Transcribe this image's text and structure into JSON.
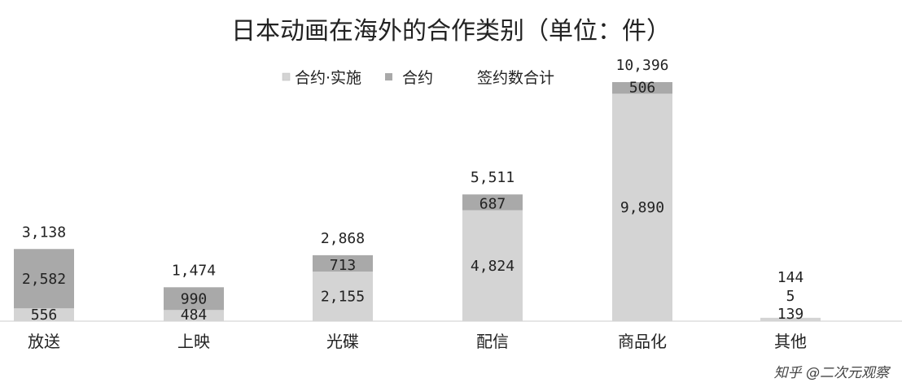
{
  "chart_data": {
    "type": "bar",
    "stacked": true,
    "title": "日本动画在海外的合作类别（单位：件）",
    "categories": [
      "放送",
      "上映",
      "光碟",
      "配信",
      "商品化",
      "其他"
    ],
    "series": [
      {
        "name": "合约·实施",
        "values": [
          556,
          484,
          2155,
          4824,
          9890,
          139
        ],
        "labels": [
          "556",
          "484",
          "2,155",
          "4,824",
          "9,890",
          "139"
        ],
        "color": "#d4d4d4"
      },
      {
        "name": "合约",
        "values": [
          2582,
          990,
          713,
          687,
          506,
          5
        ],
        "labels": [
          "2,582",
          "990",
          "713",
          "687",
          "506",
          "5"
        ],
        "color": "#a9a9a9"
      }
    ],
    "totals": {
      "name": "签约数合计",
      "values": [
        3138,
        1474,
        2868,
        5511,
        10396,
        144
      ],
      "labels": [
        "3,138",
        "1,474",
        "2,868",
        "5,511",
        "10,396",
        "144"
      ]
    },
    "ylim": [
      0,
      10396
    ],
    "xlabel": "",
    "ylabel": "",
    "grid": false,
    "legend_position": "top"
  },
  "watermark": "知乎 @二次元观察"
}
